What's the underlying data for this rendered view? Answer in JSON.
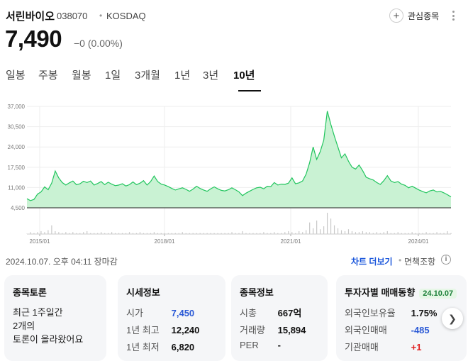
{
  "stock": {
    "name": "서린바이오",
    "code": "038070",
    "separator": "•",
    "market": "KOSDAQ",
    "price": "7,490",
    "change": "−0 (0.00%)"
  },
  "watchlist": {
    "label": "관심종목"
  },
  "tabs": [
    "일봉",
    "주봉",
    "월봉",
    "1일",
    "3개월",
    "1년",
    "3년",
    "10년"
  ],
  "active_tab": "10년",
  "chart_data": {
    "type": "area",
    "y_ticks": [
      "37,000",
      "30,500",
      "24,000",
      "17,500",
      "11,000",
      "4,500"
    ],
    "x_ticks": [
      "2015/01",
      "2018/01",
      "2021/01",
      "2024/01"
    ],
    "ylim": [
      4500,
      37000
    ],
    "color": "#22c55e",
    "fill": "#c9f2d3",
    "series": [
      {
        "values": [
          7400,
          6800,
          7200,
          8900,
          9600,
          11200,
          10300,
          12400,
          16300,
          14100,
          12600,
          11800,
          12500,
          13100,
          11900,
          12200,
          13000,
          12600,
          13100,
          11800,
          12300,
          12900,
          11900,
          12700,
          12100,
          11600,
          11800,
          12200,
          11500,
          11900,
          12800,
          11900,
          12400,
          13200,
          11800,
          12900,
          14700,
          12900,
          12100,
          11800,
          11300,
          10700,
          10200,
          10600,
          10900,
          10400,
          9800,
          10500,
          11400,
          10700,
          10200,
          9800,
          10600,
          11200,
          10600,
          10100,
          9900,
          10300,
          10900,
          10300,
          9600,
          8400,
          9200,
          9800,
          10400,
          10900,
          11100,
          10600,
          11400,
          11300,
          12600,
          11800,
          12100,
          12000,
          12400,
          14100,
          12200,
          12500,
          13100,
          15300,
          19000,
          24000,
          20000,
          22500,
          26200,
          35500,
          31200,
          27400,
          24000,
          20500,
          21800,
          19400,
          17500,
          16900,
          18200,
          16400,
          14300,
          13800,
          13400,
          12600,
          12000,
          13200,
          14800,
          13100,
          12600,
          12900,
          12100,
          11700,
          10900,
          11400,
          10800,
          10200,
          9700,
          9300,
          9900,
          10200,
          9600,
          9800,
          9300,
          8700,
          8000
        ]
      }
    ],
    "volume": [
      0,
      2,
      1,
      2,
      3,
      2,
      4,
      9,
      3,
      2,
      1,
      2,
      1,
      2,
      1,
      1,
      2,
      3,
      1,
      1,
      1,
      2,
      1,
      1,
      2,
      1,
      1,
      1,
      1,
      2,
      1,
      1,
      2,
      1,
      1,
      1,
      2,
      1,
      1,
      1,
      1,
      1,
      1,
      1,
      2,
      1,
      1,
      1,
      1,
      1,
      1,
      1,
      1,
      1,
      1,
      1,
      1,
      1,
      2,
      1,
      1,
      3,
      1,
      1,
      1,
      1,
      1,
      2,
      1,
      1,
      2,
      1,
      1,
      2,
      3,
      2,
      1,
      3,
      2,
      4,
      12,
      6,
      14,
      5,
      8,
      22,
      16,
      9,
      6,
      4,
      3,
      5,
      3,
      2,
      2,
      3,
      2,
      2,
      1,
      2,
      1,
      2,
      3,
      1,
      1,
      2,
      1,
      1,
      1,
      2,
      1,
      1,
      1,
      2,
      1,
      1,
      2,
      1,
      1,
      3,
      1
    ],
    "grid": true
  },
  "date_status": "2024.10.07. 오후 04:11 장마감",
  "links": {
    "more_chart": "차트 더보기",
    "separator": "•",
    "disclaimer": "면책조항"
  },
  "cards": {
    "community": {
      "title": "종목토론",
      "lines": [
        "최근 1주일간",
        "2개의",
        "토론이 올라왔어요"
      ]
    },
    "market_info": {
      "title": "시세정보",
      "rows": [
        {
          "label": "시가",
          "value": "7,450"
        },
        {
          "label": "1년 최고",
          "value": "12,240"
        },
        {
          "label": "1년 최저",
          "value": "6,820"
        }
      ]
    },
    "stock_info": {
      "title": "종목정보",
      "rows": [
        {
          "label": "시총",
          "value": "667억"
        },
        {
          "label": "거래량",
          "value": "15,894"
        },
        {
          "label": "PER",
          "value": "-"
        }
      ]
    },
    "investor": {
      "title": "투자자별 매매동향",
      "date_badge": "24.10.07",
      "rows": [
        {
          "label": "외국인보유율",
          "value": "1.75%"
        },
        {
          "label": "외국인매매",
          "value": "-485"
        },
        {
          "label": "기관매매",
          "value": "+1"
        }
      ]
    }
  }
}
